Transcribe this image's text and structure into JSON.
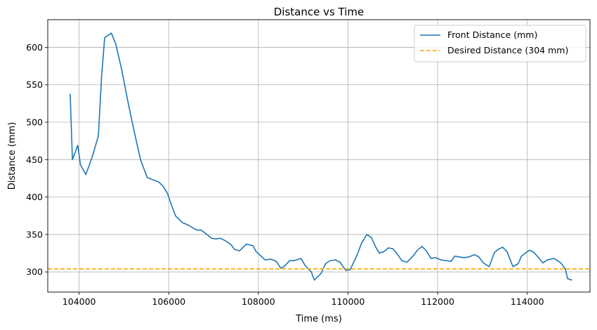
{
  "chart_data": {
    "type": "line",
    "title": "Distance vs Time",
    "xlabel": "Time (ms)",
    "ylabel": "Distance (mm)",
    "xlim": [
      103300,
      115400
    ],
    "ylim": [
      273,
      637
    ],
    "xticks": [
      104000,
      106000,
      108000,
      110000,
      112000,
      114000
    ],
    "yticks": [
      300,
      350,
      400,
      450,
      500,
      550,
      600
    ],
    "grid": true,
    "legend_position": "top-right",
    "series": [
      {
        "name": "Front Distance (mm)",
        "color": "#1f77b4",
        "style": "solid",
        "points": [
          [
            103800,
            538
          ],
          [
            103850,
            450
          ],
          [
            103970,
            469
          ],
          [
            104030,
            443
          ],
          [
            104150,
            430
          ],
          [
            104300,
            455
          ],
          [
            104430,
            482
          ],
          [
            104500,
            560
          ],
          [
            104570,
            613
          ],
          [
            104720,
            619
          ],
          [
            104820,
            604
          ],
          [
            104950,
            570
          ],
          [
            105080,
            530
          ],
          [
            105220,
            490
          ],
          [
            105370,
            450
          ],
          [
            105520,
            426
          ],
          [
            105650,
            423
          ],
          [
            105780,
            420
          ],
          [
            105880,
            414
          ],
          [
            105970,
            405
          ],
          [
            106050,
            391
          ],
          [
            106150,
            375
          ],
          [
            106300,
            366
          ],
          [
            106450,
            362
          ],
          [
            106620,
            356
          ],
          [
            106720,
            356
          ],
          [
            106850,
            350
          ],
          [
            106950,
            345
          ],
          [
            107050,
            344
          ],
          [
            107150,
            345
          ],
          [
            107250,
            342
          ],
          [
            107380,
            337
          ],
          [
            107470,
            330
          ],
          [
            107580,
            328
          ],
          [
            107730,
            337
          ],
          [
            107880,
            335
          ],
          [
            107950,
            327
          ],
          [
            108080,
            320
          ],
          [
            108150,
            316
          ],
          [
            108280,
            317
          ],
          [
            108400,
            314
          ],
          [
            108500,
            305
          ],
          [
            108570,
            307
          ],
          [
            108700,
            315
          ],
          [
            108800,
            315
          ],
          [
            108950,
            318
          ],
          [
            109050,
            308
          ],
          [
            109180,
            300
          ],
          [
            109250,
            289
          ],
          [
            109400,
            298
          ],
          [
            109500,
            311
          ],
          [
            109600,
            315
          ],
          [
            109720,
            316
          ],
          [
            109820,
            313
          ],
          [
            109950,
            302
          ],
          [
            110050,
            303
          ],
          [
            110200,
            322
          ],
          [
            110300,
            338
          ],
          [
            110420,
            350
          ],
          [
            110520,
            346
          ],
          [
            110620,
            333
          ],
          [
            110700,
            325
          ],
          [
            110800,
            327
          ],
          [
            110900,
            332
          ],
          [
            111000,
            331
          ],
          [
            111100,
            324
          ],
          [
            111200,
            315
          ],
          [
            111320,
            313
          ],
          [
            111450,
            321
          ],
          [
            111550,
            329
          ],
          [
            111650,
            334
          ],
          [
            111750,
            328
          ],
          [
            111850,
            318
          ],
          [
            111950,
            319
          ],
          [
            112080,
            316
          ],
          [
            112200,
            315
          ],
          [
            112300,
            314
          ],
          [
            112380,
            321
          ],
          [
            112480,
            320
          ],
          [
            112580,
            319
          ],
          [
            112700,
            320
          ],
          [
            112820,
            323
          ],
          [
            112920,
            320
          ],
          [
            113020,
            312
          ],
          [
            113150,
            307
          ],
          [
            113270,
            326
          ],
          [
            113350,
            330
          ],
          [
            113450,
            333
          ],
          [
            113550,
            327
          ],
          [
            113680,
            307
          ],
          [
            113800,
            311
          ],
          [
            113870,
            321
          ],
          [
            113980,
            326
          ],
          [
            114050,
            329
          ],
          [
            114150,
            326
          ],
          [
            114280,
            317
          ],
          [
            114350,
            312
          ],
          [
            114450,
            316
          ],
          [
            114600,
            318
          ],
          [
            114750,
            312
          ],
          [
            114850,
            304
          ],
          [
            114900,
            291
          ],
          [
            115000,
            289
          ]
        ]
      },
      {
        "name": "Desired Distance (304 mm)",
        "color": "#ffa500",
        "style": "dashed",
        "y": 304
      }
    ]
  }
}
